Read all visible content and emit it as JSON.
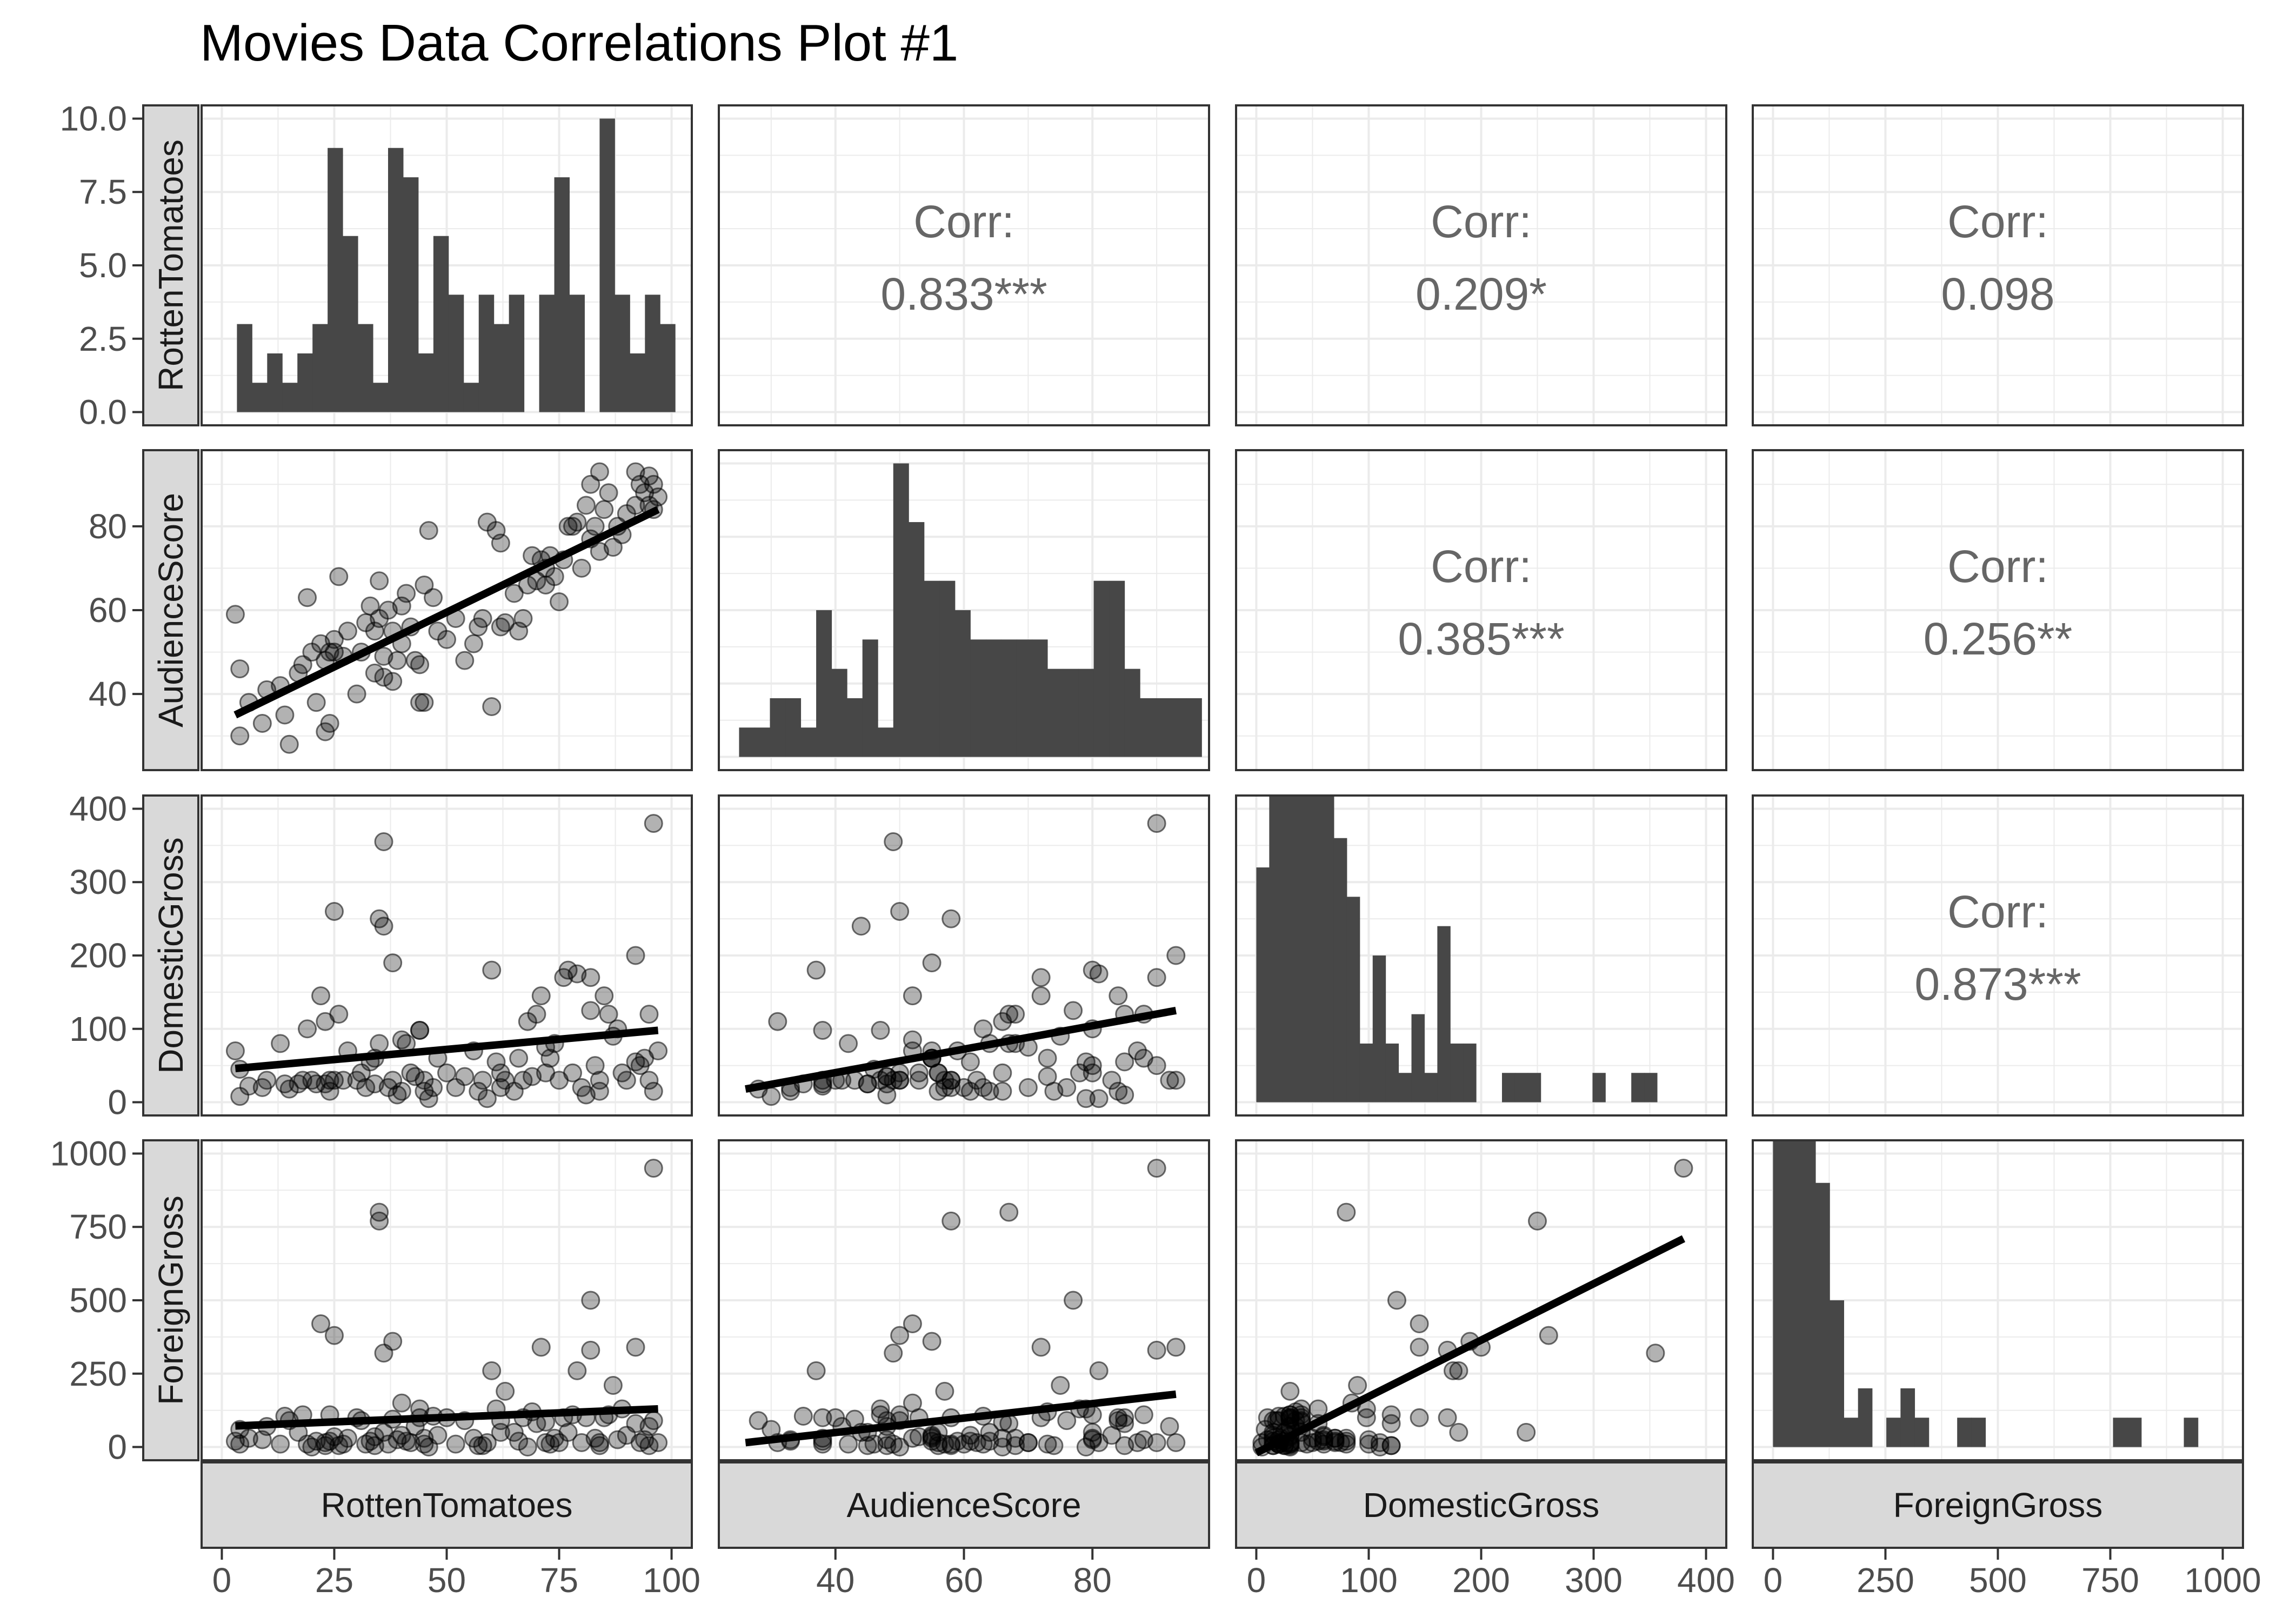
{
  "chart_data": {
    "type": "scatter-matrix",
    "title": "Movies Data Correlations Plot #1",
    "variables": [
      "RottenTomatoes",
      "AudienceScore",
      "DomesticGross",
      "ForeignGross"
    ],
    "axes": [
      {
        "min": 0,
        "max": 100,
        "ticks": [
          0,
          25,
          50,
          75,
          100
        ]
      },
      {
        "min": 25,
        "max": 95,
        "ticks": [
          40,
          60,
          80
        ]
      },
      {
        "min": 0,
        "max": 400,
        "ticks": [
          0,
          100,
          200,
          300,
          400
        ]
      },
      {
        "min": 0,
        "max": 1000,
        "ticks": [
          0,
          250,
          500,
          750,
          1000
        ]
      }
    ],
    "diag_count_axis": {
      "min": 0,
      "max": 10,
      "ticks": [
        "0.0",
        "2.5",
        "5.0",
        "7.5",
        "10.0"
      ]
    },
    "corr_label": "Corr:",
    "correlations": [
      {
        "row": 0,
        "col": 1,
        "value": "0.833***"
      },
      {
        "row": 0,
        "col": 2,
        "value": "0.209*"
      },
      {
        "row": 0,
        "col": 3,
        "value": "0.098"
      },
      {
        "row": 1,
        "col": 2,
        "value": "0.385***"
      },
      {
        "row": 1,
        "col": 3,
        "value": "0.256**"
      },
      {
        "row": 2,
        "col": 3,
        "value": "0.873***"
      }
    ],
    "histograms": {
      "RottenTomatoes": {
        "start": 3.36,
        "width": 3.36,
        "counts": [
          3,
          1,
          2,
          1,
          2,
          3,
          9,
          6,
          3,
          1,
          9,
          8,
          2,
          6,
          4,
          1,
          4,
          3,
          4,
          0,
          4,
          8,
          4,
          0,
          10,
          4,
          2,
          4,
          3
        ]
      },
      "AudienceScore": {
        "start": 25,
        "width": 2.4,
        "counts": [
          1,
          1,
          2,
          2,
          1,
          5,
          3,
          2,
          4,
          1,
          10,
          8,
          6,
          6,
          5,
          4,
          4,
          4,
          4,
          4,
          3,
          3,
          3,
          6,
          6,
          3,
          2,
          2,
          2,
          2
        ]
      },
      "DomesticGross": {
        "start": 0,
        "width": 11.5,
        "counts": [
          8,
          18,
          20,
          22,
          14,
          12,
          9,
          7,
          2,
          5,
          2,
          1,
          3,
          1,
          6,
          2,
          2,
          0,
          0,
          1,
          1,
          1,
          0,
          0,
          0,
          0,
          1,
          0,
          0,
          1,
          1,
          0
        ]
      },
      "ForeignGross": {
        "start": 0,
        "width": 31.5,
        "counts": [
          22,
          24,
          17,
          9,
          5,
          1,
          2,
          0,
          1,
          2,
          1,
          0,
          0,
          1,
          1,
          0,
          0,
          0,
          0,
          0,
          0,
          0,
          0,
          0,
          1,
          1,
          0,
          0,
          0,
          1,
          0
        ]
      }
    },
    "regression_lines": {
      "1-0": [
        [
          3,
          35
        ],
        [
          97,
          84
        ]
      ],
      "2-0": [
        [
          3,
          46
        ],
        [
          97,
          98
        ]
      ],
      "2-1": [
        [
          26,
          18
        ],
        [
          93,
          125
        ]
      ],
      "3-0": [
        [
          3,
          72
        ],
        [
          97,
          130
        ]
      ],
      "3-1": [
        [
          26,
          15
        ],
        [
          93,
          180
        ]
      ],
      "3-2": [
        [
          0,
          -20
        ],
        [
          380,
          710
        ]
      ]
    },
    "movies": [
      [
        3,
        59,
        70,
        20
      ],
      [
        4,
        46,
        45,
        10
      ],
      [
        4,
        30,
        8,
        60
      ],
      [
        6,
        38,
        22,
        30
      ],
      [
        9,
        33,
        20,
        25
      ],
      [
        10,
        41,
        30,
        70
      ],
      [
        13,
        42,
        80,
        10
      ],
      [
        14,
        35,
        25,
        105
      ],
      [
        15,
        28,
        18,
        90
      ],
      [
        17,
        45,
        25,
        50
      ],
      [
        18,
        47,
        30,
        110
      ],
      [
        19,
        63,
        100,
        10
      ],
      [
        20,
        50,
        30,
        0
      ],
      [
        21,
        38,
        25,
        20
      ],
      [
        22,
        52,
        145,
        420
      ],
      [
        23,
        48,
        25,
        5
      ],
      [
        23,
        31,
        110,
        15
      ],
      [
        24,
        50,
        30,
        110
      ],
      [
        24,
        33,
        15,
        20
      ],
      [
        25,
        53,
        30,
        35
      ],
      [
        25,
        50,
        260,
        380
      ],
      [
        26,
        68,
        120,
        5
      ],
      [
        27,
        49,
        30,
        10
      ],
      [
        28,
        55,
        70,
        30
      ],
      [
        30,
        40,
        30,
        100
      ],
      [
        31,
        50,
        40,
        90
      ],
      [
        32,
        57,
        20,
        10
      ],
      [
        33,
        61,
        55,
        20
      ],
      [
        34,
        55,
        60,
        35
      ],
      [
        34,
        45,
        25,
        5
      ],
      [
        35,
        67,
        80,
        800
      ],
      [
        35,
        58,
        250,
        770
      ],
      [
        36,
        49,
        355,
        320
      ],
      [
        36,
        44,
        240,
        50
      ],
      [
        37,
        60,
        20,
        10
      ],
      [
        38,
        43,
        30,
        95
      ],
      [
        38,
        55,
        190,
        360
      ],
      [
        39,
        48,
        10,
        25
      ],
      [
        40,
        61,
        15,
        40
      ],
      [
        40,
        52,
        85,
        150
      ],
      [
        41,
        64,
        80,
        20
      ],
      [
        42,
        56,
        40,
        15
      ],
      [
        43,
        48,
        35,
        70
      ],
      [
        44,
        47,
        98,
        130
      ],
      [
        44,
        38,
        98,
        100
      ],
      [
        45,
        66,
        15,
        30
      ],
      [
        45,
        38,
        30,
        10
      ],
      [
        46,
        79,
        5,
        0
      ],
      [
        47,
        63,
        20,
        105
      ],
      [
        48,
        55,
        60,
        40
      ],
      [
        50,
        53,
        40,
        100
      ],
      [
        52,
        58,
        20,
        10
      ],
      [
        54,
        48,
        35,
        90
      ],
      [
        56,
        52,
        70,
        30
      ],
      [
        57,
        56,
        15,
        5
      ],
      [
        58,
        58,
        30,
        5
      ],
      [
        59,
        81,
        5,
        15
      ],
      [
        60,
        37,
        180,
        260
      ],
      [
        61,
        79,
        55,
        130
      ],
      [
        62,
        56,
        40,
        50
      ],
      [
        62,
        76,
        20,
        90
      ],
      [
        63,
        57,
        30,
        190
      ],
      [
        65,
        64,
        15,
        50
      ],
      [
        66,
        55,
        60,
        20
      ],
      [
        67,
        58,
        30,
        100
      ],
      [
        68,
        66,
        110,
        0
      ],
      [
        69,
        73,
        35,
        120
      ],
      [
        70,
        67,
        120,
        80
      ],
      [
        71,
        72,
        145,
        340
      ],
      [
        72,
        66,
        40,
        85
      ],
      [
        72,
        70,
        75,
        15
      ],
      [
        73,
        73,
        60,
        10
      ],
      [
        74,
        68,
        80,
        30
      ],
      [
        75,
        62,
        30,
        15
      ],
      [
        76,
        72,
        170,
        100
      ],
      [
        77,
        80,
        180,
        50
      ],
      [
        78,
        80,
        40,
        110
      ],
      [
        79,
        81,
        175,
        260
      ],
      [
        80,
        70,
        20,
        15
      ],
      [
        81,
        85,
        10,
        100
      ],
      [
        82,
        77,
        125,
        500
      ],
      [
        82,
        90,
        170,
        330
      ],
      [
        83,
        80,
        50,
        30
      ],
      [
        84,
        93,
        30,
        15
      ],
      [
        84,
        74,
        15,
        5
      ],
      [
        85,
        84,
        145,
        100
      ],
      [
        86,
        88,
        120,
        110
      ],
      [
        87,
        75,
        90,
        210
      ],
      [
        88,
        80,
        100,
        25
      ],
      [
        89,
        78,
        40,
        130
      ],
      [
        90,
        83,
        30,
        40
      ],
      [
        92,
        85,
        55,
        80
      ],
      [
        92,
        93,
        200,
        340
      ],
      [
        93,
        90,
        50,
        15
      ],
      [
        94,
        88,
        60,
        25
      ],
      [
        95,
        92,
        30,
        70
      ],
      [
        95,
        85,
        120,
        5
      ],
      [
        96,
        90,
        380,
        950
      ],
      [
        96,
        84,
        15,
        90
      ],
      [
        97,
        87,
        70,
        15
      ]
    ]
  }
}
